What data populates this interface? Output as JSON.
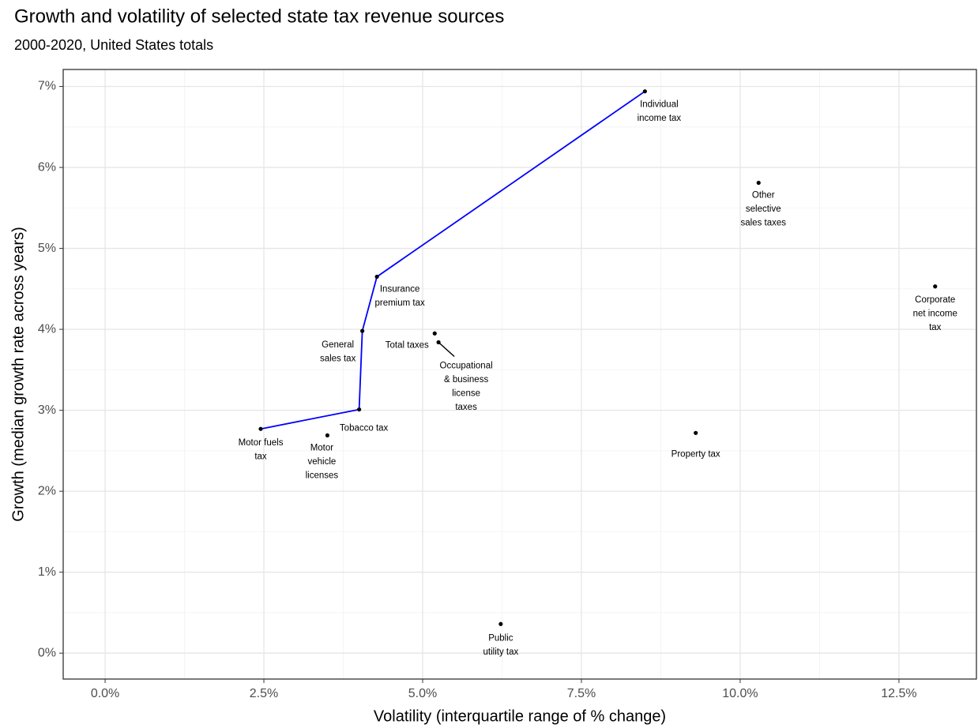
{
  "chart_data": {
    "type": "scatter",
    "title": "Growth and volatility of selected state tax revenue sources",
    "subtitle": "2000-2020, United States totals",
    "x_label": "Volatility (interquartile range of % change)",
    "y_label": "Growth (median growth rate across years)",
    "labels": [
      [
        "Motor fuels",
        "tax"
      ],
      [
        "Motor",
        "vehicle",
        "licenses"
      ],
      [
        "Tobacco tax"
      ],
      [
        "General",
        "sales tax"
      ],
      [
        "Insurance",
        "premium tax"
      ],
      [
        "Total taxes"
      ],
      [
        "Occupational",
        "& business",
        "license",
        "taxes"
      ],
      [
        "Public",
        "utility tax"
      ],
      [
        "Individual",
        "income tax"
      ],
      [
        "Property tax"
      ],
      [
        "Other",
        "selective",
        "sales taxes"
      ],
      [
        "Corporate",
        "net income",
        "tax"
      ]
    ],
    "x": [
      2.45,
      3.5,
      4.0,
      4.05,
      4.28,
      5.19,
      5.25,
      6.23,
      8.5,
      9.3,
      10.29,
      13.07
    ],
    "y": [
      2.77,
      2.69,
      3.01,
      3.98,
      4.65,
      3.95,
      3.84,
      0.36,
      6.94,
      2.72,
      5.81,
      4.53
    ],
    "on_line": [
      true,
      false,
      true,
      true,
      true,
      false,
      false,
      false,
      true,
      false,
      false,
      false
    ],
    "color": "#000000",
    "line_color": "#0000ff",
    "xlim": [
      -0.66,
      13.72
    ],
    "ylim": [
      -0.32,
      7.21
    ],
    "xticks": [
      {
        "value": 0,
        "label": "0.0%"
      },
      {
        "value": 2.5,
        "label": "2.5%"
      },
      {
        "value": 5,
        "label": "5.0%"
      },
      {
        "value": 7.5,
        "label": "7.5%"
      },
      {
        "value": 10,
        "label": "10.0%"
      },
      {
        "value": 12.5,
        "label": "12.5%"
      }
    ],
    "yticks": [
      {
        "value": 0,
        "label": "0%"
      },
      {
        "value": 1,
        "label": "1%"
      },
      {
        "value": 2,
        "label": "2%"
      },
      {
        "value": 3,
        "label": "3%"
      },
      {
        "value": 4,
        "label": "4%"
      },
      {
        "value": 5,
        "label": "5%"
      },
      {
        "value": 6,
        "label": "6%"
      },
      {
        "value": 7,
        "label": "7%"
      }
    ],
    "grid": true
  }
}
